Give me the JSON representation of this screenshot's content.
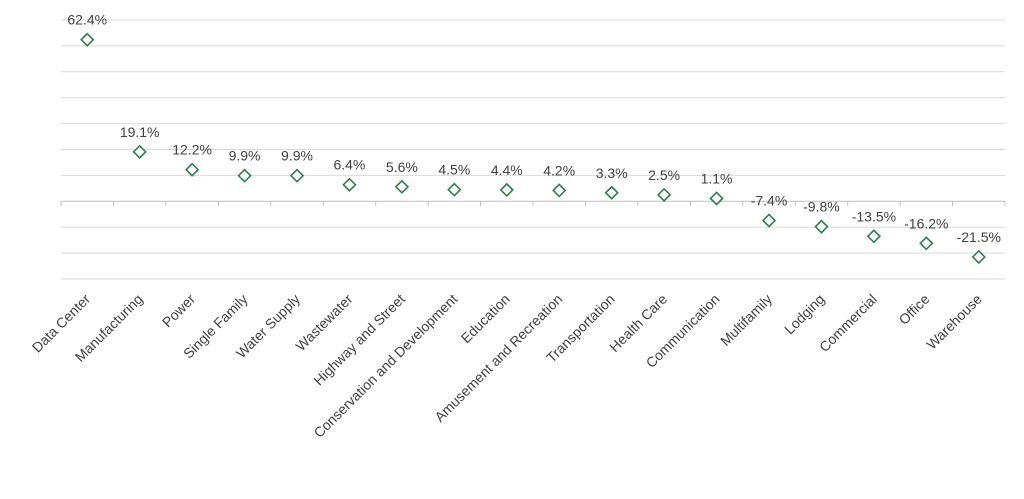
{
  "chart_data": {
    "type": "scatter",
    "marker": "diamond",
    "categories": [
      "Data Center",
      "Manufacturing",
      "Power",
      "Single Family",
      "Water Supply",
      "Wastewater",
      "Highway and Street",
      "Conservation and Development",
      "Education",
      "Amusement and Recreation",
      "Transportation",
      "Health Care",
      "Communication",
      "Multifamily",
      "Lodging",
      "Commercial",
      "Office",
      "Warehouse"
    ],
    "values": [
      62.4,
      19.1,
      12.2,
      9.9,
      9.9,
      6.4,
      5.6,
      4.5,
      4.4,
      4.2,
      3.3,
      2.5,
      1.1,
      -7.4,
      -9.8,
      -13.5,
      -16.2,
      -21.5
    ],
    "data_labels": [
      "62.4%",
      "19.1%",
      "12.2%",
      "9.9%",
      "9.9%",
      "6.4%",
      "5.6%",
      "4.5%",
      "4.4%",
      "4.2%",
      "3.3%",
      "2.5%",
      "1.1%",
      "-7.4%",
      "-9.8%",
      "-13.5%",
      "-16.2%",
      "-21.5%"
    ],
    "unit": "%",
    "ylim": [
      -30,
      70
    ],
    "grid_step": 10,
    "grid": true,
    "marker_color": "#2e7d4f",
    "title": "",
    "xlabel": "",
    "ylabel": ""
  }
}
